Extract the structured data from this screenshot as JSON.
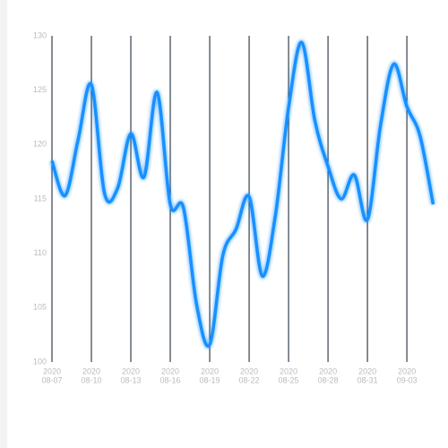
{
  "chart_data": {
    "type": "line",
    "x": [
      "2020-08-07",
      "2020-08-08",
      "2020-08-09",
      "2020-08-10",
      "2020-08-11",
      "2020-08-12",
      "2020-08-13",
      "2020-08-14",
      "2020-08-15",
      "2020-08-16",
      "2020-08-17",
      "2020-08-18",
      "2020-08-19",
      "2020-08-20",
      "2020-08-21",
      "2020-08-22",
      "2020-08-23",
      "2020-08-24",
      "2020-08-25",
      "2020-08-26",
      "2020-08-27",
      "2020-08-28",
      "2020-08-29",
      "2020-08-30",
      "2020-08-31",
      "2020-09-01",
      "2020-09-02",
      "2020-09-03",
      "2020-09-04",
      "2020-09-05"
    ],
    "series": [
      {
        "color": "#1890ff",
        "values": [
          118.5,
          115.3,
          120.5,
          125.5,
          115.5,
          116,
          121,
          117,
          124.8,
          114.5,
          114.2,
          105.3,
          101.6,
          109.8,
          112.2,
          115.2,
          107.9,
          113.5,
          123.4,
          129.4,
          122.2,
          118,
          115,
          117.2,
          113.1,
          121.8,
          127.4,
          123.5,
          120.8,
          114.5
        ]
      }
    ],
    "xticks": [
      {
        "value": "2020-08-07",
        "label": [
          "2020",
          "08-07"
        ]
      },
      {
        "value": "2020-08-10",
        "label": [
          "2020",
          "08-10"
        ]
      },
      {
        "value": "2020-08-13",
        "label": [
          "2020",
          "08-13"
        ]
      },
      {
        "value": "2020-08-16",
        "label": [
          "2020",
          "08-16"
        ]
      },
      {
        "value": "2020-08-19",
        "label": [
          "2020",
          "08-19"
        ]
      },
      {
        "value": "2020-08-22",
        "label": [
          "2020",
          "08-22"
        ]
      },
      {
        "value": "2020-08-25",
        "label": [
          "2020",
          "08-25"
        ]
      },
      {
        "value": "2020-08-28",
        "label": [
          "2020",
          "08-28"
        ]
      },
      {
        "value": "2020-08-31",
        "label": [
          "2020",
          "08-31"
        ]
      },
      {
        "value": "2020-09-03",
        "label": [
          "2020",
          "09-03"
        ]
      }
    ],
    "ylim": [
      100,
      130
    ],
    "yticks": [
      100,
      105,
      110,
      115,
      120,
      125,
      130
    ],
    "grid": true
  }
}
